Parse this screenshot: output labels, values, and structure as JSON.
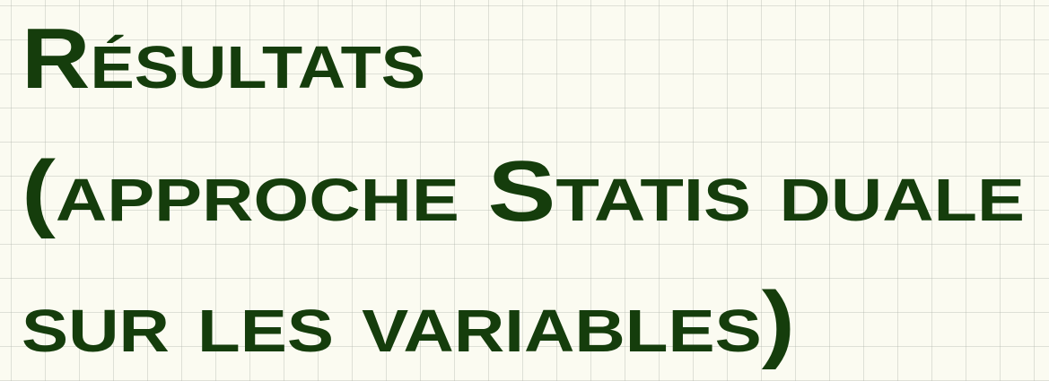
{
  "title": {
    "lines": [
      "Résultats",
      "(approche Statis duale",
      "sur les variables)"
    ]
  }
}
